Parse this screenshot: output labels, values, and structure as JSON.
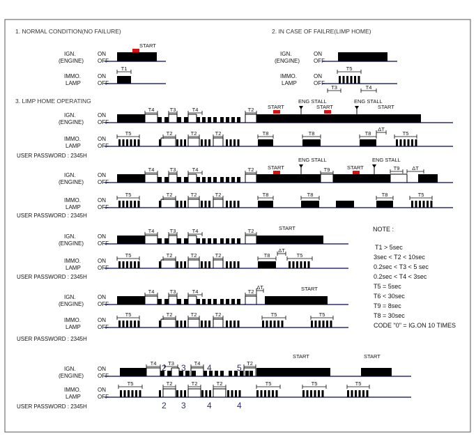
{
  "sections": {
    "s1": "1. NORMAL CONDITION(NO FAILURE)",
    "s2": "2. IN CASE OF FAILRE(LIMP HOME)",
    "s3": "3. LIMP HOME OPERATING"
  },
  "labels": {
    "ign": "IGN.",
    "engine": "(ENGINE)",
    "immo": "IMMO.",
    "lamp": "LAMP",
    "on": "ON",
    "off": "OFF",
    "user_password": "USER PASSWORD : 2345H",
    "start": "START",
    "eng_stall": "ENG STALL",
    "t1": "T1",
    "t2": "T2",
    "t3": "T3",
    "t4": "T4",
    "t5": "T5",
    "t8": "T8",
    "t9": "T9",
    "dt": "ΔT"
  },
  "digits": {
    "top": [
      "2",
      "3",
      "4",
      "5"
    ],
    "bottom": [
      "2",
      "3",
      "4",
      "4"
    ]
  },
  "note": {
    "title": "NOTE :",
    "lines": [
      "T1 > 5sec",
      "3sec < T2 < 10sec",
      "0.2sec < T3 < 5 sec",
      "0.2sec < T4 < 3sec",
      "T5 = 5sec",
      "T6 < 30sec",
      "T9 = 8sec",
      "T8 = 30sec",
      "CODE \"0\" = IG.ON 10 TIMES"
    ]
  },
  "colors": {
    "signal": "#000000",
    "baseline": "#2b2f7a",
    "start_marker": "#e01010",
    "frame": "#555555"
  }
}
